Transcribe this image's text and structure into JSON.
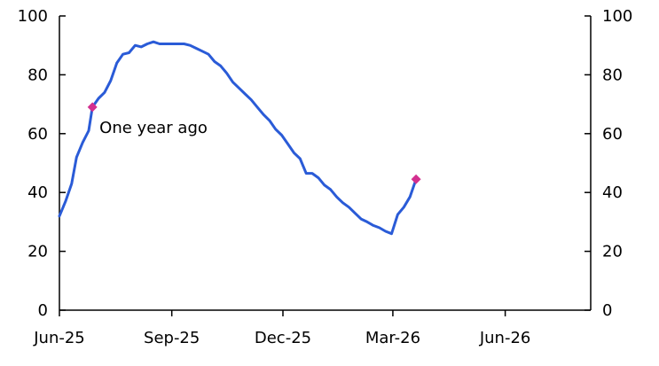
{
  "chart_data": {
    "type": "line",
    "title": "",
    "xlabel": "",
    "ylabel": "",
    "ylim": [
      0,
      100
    ],
    "y_ticks": [
      0,
      20,
      40,
      60,
      80,
      100
    ],
    "y_tick_labels": [
      "0",
      "20",
      "40",
      "60",
      "80",
      "100"
    ],
    "right_y_ticks": [
      0,
      20,
      40,
      60,
      80,
      100
    ],
    "right_y_tick_labels": [
      "0",
      "20",
      "40",
      "60",
      "80",
      "100"
    ],
    "x_range": [
      "2025-06-01",
      "2026-08-10"
    ],
    "x_ticks": [
      "2025-06-01",
      "2025-09-01",
      "2025-12-01",
      "2026-03-01",
      "2026-06-01"
    ],
    "x_tick_labels": [
      "Jun-25",
      "Sep-25",
      "Dec-25",
      "Mar-26",
      "Jun-26"
    ],
    "grid": false,
    "series": [
      {
        "name": "",
        "color": "#2a5bd7",
        "points": [
          [
            "2025-06-01",
            32
          ],
          [
            "2025-06-06",
            37
          ],
          [
            "2025-06-11",
            43
          ],
          [
            "2025-06-15",
            52
          ],
          [
            "2025-06-20",
            57
          ],
          [
            "2025-06-25",
            61
          ],
          [
            "2025-06-28",
            69
          ],
          [
            "2025-07-03",
            72
          ],
          [
            "2025-07-08",
            74
          ],
          [
            "2025-07-13",
            78
          ],
          [
            "2025-07-18",
            84
          ],
          [
            "2025-07-23",
            87
          ],
          [
            "2025-07-28",
            87.5
          ],
          [
            "2025-08-02",
            90
          ],
          [
            "2025-08-07",
            89.5
          ],
          [
            "2025-08-12",
            90.5
          ],
          [
            "2025-08-17",
            91.2
          ],
          [
            "2025-08-22",
            90.5
          ],
          [
            "2025-08-27",
            90.5
          ],
          [
            "2025-09-01",
            90.5
          ],
          [
            "2025-09-06",
            90.5
          ],
          [
            "2025-09-11",
            90.5
          ],
          [
            "2025-09-16",
            90
          ],
          [
            "2025-09-21",
            89
          ],
          [
            "2025-09-26",
            88
          ],
          [
            "2025-10-01",
            87
          ],
          [
            "2025-10-06",
            84.5
          ],
          [
            "2025-10-11",
            83
          ],
          [
            "2025-10-16",
            80.5
          ],
          [
            "2025-10-21",
            77.5
          ],
          [
            "2025-10-26",
            75.5
          ],
          [
            "2025-10-31",
            73.5
          ],
          [
            "2025-11-05",
            71.5
          ],
          [
            "2025-11-10",
            69
          ],
          [
            "2025-11-15",
            66.5
          ],
          [
            "2025-11-20",
            64.5
          ],
          [
            "2025-11-25",
            61.5
          ],
          [
            "2025-11-30",
            59.5
          ],
          [
            "2025-12-05",
            56.5
          ],
          [
            "2025-12-10",
            53.5
          ],
          [
            "2025-12-15",
            51.5
          ],
          [
            "2025-12-20",
            46.5
          ],
          [
            "2025-12-25",
            46.5
          ],
          [
            "2025-12-30",
            45
          ],
          [
            "2026-01-04",
            42.5
          ],
          [
            "2026-01-09",
            41
          ],
          [
            "2026-01-14",
            38.5
          ],
          [
            "2026-01-19",
            36.5
          ],
          [
            "2026-01-24",
            35
          ],
          [
            "2026-01-29",
            33
          ],
          [
            "2026-02-03",
            31
          ],
          [
            "2026-02-08",
            30
          ],
          [
            "2026-02-13",
            28.8
          ],
          [
            "2026-02-18",
            28
          ],
          [
            "2026-02-23",
            26.8
          ],
          [
            "2026-02-28",
            26
          ],
          [
            "2026-03-05",
            32.5
          ],
          [
            "2026-03-10",
            35
          ],
          [
            "2026-03-15",
            38.5
          ],
          [
            "2026-03-20",
            44.5
          ]
        ]
      }
    ],
    "markers": [
      {
        "x": "2025-06-28",
        "y": 69,
        "color": "#d32f8f",
        "label": "One year ago"
      },
      {
        "x": "2026-03-20",
        "y": 44.5,
        "color": "#d32f8f",
        "label": ""
      }
    ]
  }
}
